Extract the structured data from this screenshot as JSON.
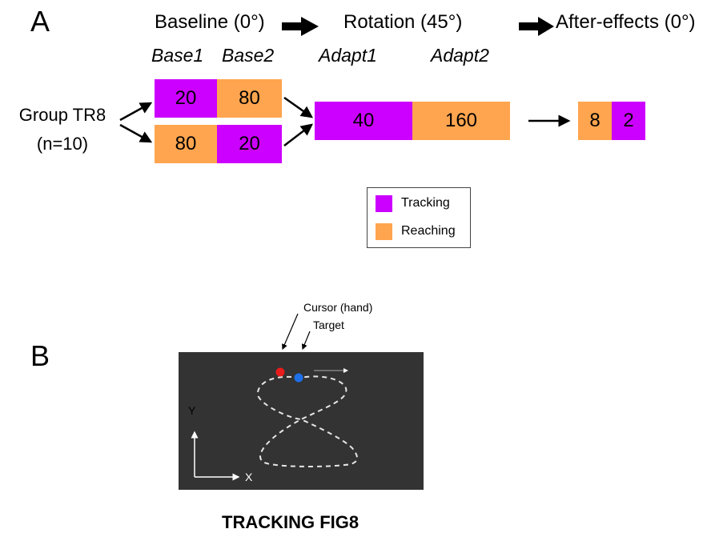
{
  "panel_a": {
    "letter": "A",
    "phases": {
      "baseline": "Baseline (0°)",
      "rotation": "Rotation (45°)",
      "aftereffects": "After-effects (0°)"
    },
    "block_names": {
      "base1": "Base1",
      "base2": "Base2",
      "adapt1": "Adapt1",
      "adapt2": "Adapt2"
    },
    "group": {
      "name": "Group TR8",
      "n": "(n=10)"
    },
    "blocks": {
      "base_top_1": "20",
      "base_top_2": "80",
      "base_bottom_1": "80",
      "base_bottom_2": "20",
      "adapt_1": "40",
      "adapt_2": "160",
      "after_1": "8",
      "after_2": "2"
    },
    "legend": {
      "tracking": "Tracking",
      "reaching": "Reaching"
    }
  },
  "panel_b": {
    "letter": "B",
    "cursor_label": "Cursor (hand)",
    "target_label": "Target",
    "axis_y": "Y",
    "axis_x": "X",
    "title": "TRACKING FIG8"
  },
  "colors": {
    "tracking": "#cc00ff",
    "reaching": "#ffa54f",
    "screen": "#333333",
    "cursor": "#e81c1c",
    "target": "#1e6fe8"
  }
}
